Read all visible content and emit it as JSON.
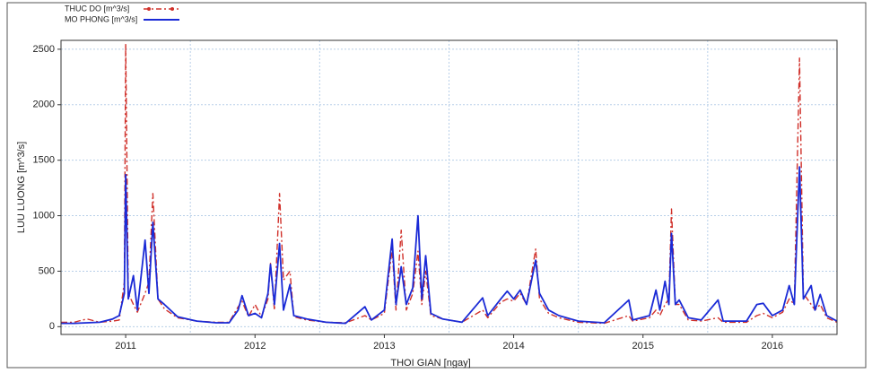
{
  "chart_data": {
    "type": "line",
    "legend_items": [
      "THUC DO    [m^3/s]",
      "MO PHONG [m^3/s]"
    ],
    "x_label": "THOI GIAN [ngay]",
    "y_label": "LUU LUONG [m^3/s]",
    "xlim": [
      2010.5,
      2016.5
    ],
    "xticks": [
      2011,
      2012,
      2013,
      2014,
      2015,
      2016
    ],
    "x_gridlines": [
      2011.5,
      2012.5,
      2013.5,
      2014.5,
      2015.5
    ],
    "ylim": [
      -70,
      2580
    ],
    "yticks": [
      0,
      500,
      1000,
      1500,
      2000,
      2500
    ],
    "grid": true,
    "x": [
      2010.5,
      2010.6,
      2010.7,
      2010.8,
      2010.9,
      2010.95,
      2010.99,
      2011.0,
      2011.02,
      2011.06,
      2011.09,
      2011.15,
      2011.18,
      2011.21,
      2011.25,
      2011.3,
      2011.4,
      2011.55,
      2011.7,
      2011.8,
      2011.87,
      2011.9,
      2011.95,
      2012.0,
      2012.05,
      2012.1,
      2012.12,
      2012.15,
      2012.19,
      2012.22,
      2012.27,
      2012.3,
      2012.4,
      2012.55,
      2012.7,
      2012.85,
      2012.9,
      2013.0,
      2013.06,
      2013.09,
      2013.13,
      2013.17,
      2013.22,
      2013.26,
      2013.29,
      2013.32,
      2013.36,
      2013.45,
      2013.6,
      2013.76,
      2013.8,
      2013.9,
      2013.95,
      2014.0,
      2014.05,
      2014.1,
      2014.17,
      2014.2,
      2014.27,
      2014.35,
      2014.5,
      2014.7,
      2014.89,
      2014.92,
      2015.05,
      2015.1,
      2015.13,
      2015.17,
      2015.2,
      2015.22,
      2015.25,
      2015.28,
      2015.35,
      2015.45,
      2015.58,
      2015.62,
      2015.8,
      2015.88,
      2015.93,
      2016.0,
      2016.08,
      2016.13,
      2016.17,
      2016.21,
      2016.24,
      2016.3,
      2016.33,
      2016.37,
      2016.42,
      2016.5
    ],
    "series": [
      {
        "name": "THUC DO    [m^3/s]",
        "color": "#d0302a",
        "dash": true,
        "values": [
          40,
          40,
          70,
          40,
          50,
          60,
          400,
          2550,
          300,
          200,
          130,
          300,
          400,
          1200,
          250,
          160,
          80,
          50,
          40,
          40,
          180,
          230,
          90,
          200,
          90,
          250,
          570,
          150,
          1200,
          420,
          500,
          90,
          60,
          40,
          35,
          100,
          60,
          120,
          700,
          150,
          870,
          150,
          300,
          680,
          200,
          500,
          100,
          70,
          40,
          150,
          80,
          220,
          250,
          230,
          300,
          200,
          700,
          250,
          120,
          80,
          40,
          30,
          100,
          50,
          80,
          150,
          100,
          200,
          250,
          1060,
          200,
          200,
          60,
          50,
          80,
          40,
          40,
          100,
          120,
          80,
          130,
          250,
          200,
          2420,
          300,
          200,
          150,
          200,
          80,
          40
        ]
      },
      {
        "name": "MO PHONG [m^3/s]",
        "color": "#1a2ad6",
        "dash": false,
        "values": [
          30,
          30,
          35,
          40,
          70,
          100,
          300,
          1370,
          250,
          460,
          150,
          780,
          300,
          940,
          250,
          200,
          90,
          50,
          35,
          35,
          150,
          280,
          100,
          120,
          80,
          300,
          560,
          200,
          750,
          150,
          380,
          100,
          70,
          40,
          30,
          180,
          60,
          150,
          790,
          200,
          540,
          200,
          350,
          1000,
          250,
          640,
          120,
          70,
          40,
          260,
          100,
          250,
          320,
          250,
          330,
          200,
          600,
          300,
          150,
          100,
          50,
          35,
          240,
          60,
          100,
          330,
          150,
          410,
          200,
          840,
          200,
          240,
          80,
          60,
          240,
          50,
          50,
          200,
          210,
          100,
          150,
          370,
          200,
          1440,
          250,
          370,
          150,
          290,
          100,
          50
        ]
      }
    ]
  }
}
